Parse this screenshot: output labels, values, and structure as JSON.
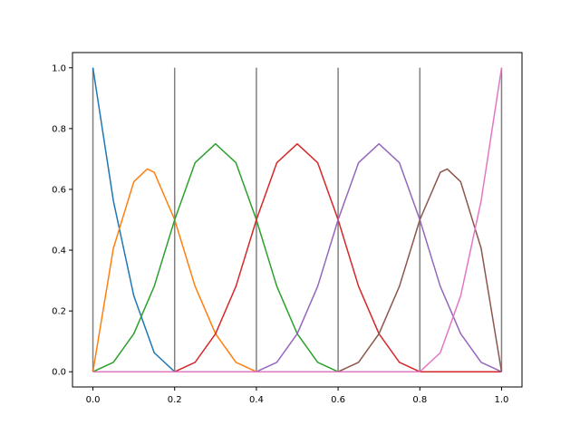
{
  "chart_data": {
    "type": "line",
    "title": "",
    "xlabel": "",
    "ylabel": "",
    "xlim": [
      -0.05,
      1.05
    ],
    "ylim": [
      -0.05,
      1.05
    ],
    "x_ticks": [
      0.0,
      0.2,
      0.4,
      0.6,
      0.8,
      1.0
    ],
    "x_tick_labels": [
      "0.0",
      "0.2",
      "0.4",
      "0.6",
      "0.8",
      "1.0"
    ],
    "y_ticks": [
      0.0,
      0.2,
      0.4,
      0.6,
      0.8,
      1.0
    ],
    "y_tick_labels": [
      "0.0",
      "0.2",
      "0.4",
      "0.6",
      "0.8",
      "1.0"
    ],
    "grid": false,
    "legend": "none",
    "knot_lines": {
      "x": [
        0.0,
        0.2,
        0.4,
        0.6,
        0.8,
        1.0
      ],
      "y_range": [
        0,
        1
      ],
      "color": "#808080"
    },
    "series": [
      {
        "color": "#1f77b4",
        "x": [
          0.0,
          0.05,
          0.1,
          0.15,
          0.2,
          1.0
        ],
        "y": [
          1.0,
          0.5625,
          0.25,
          0.0625,
          0.0,
          0.0
        ]
      },
      {
        "color": "#ff7f0e",
        "x": [
          0.0,
          0.05,
          0.1,
          0.133,
          0.15,
          0.2,
          0.25,
          0.3,
          0.35,
          0.4,
          1.0
        ],
        "y": [
          0.0,
          0.406,
          0.625,
          0.667,
          0.656,
          0.5,
          0.281,
          0.125,
          0.031,
          0.0,
          0.0
        ]
      },
      {
        "color": "#2ca02c",
        "x": [
          0.0,
          0.05,
          0.1,
          0.15,
          0.2,
          0.25,
          0.3,
          0.35,
          0.4,
          0.45,
          0.5,
          0.55,
          0.6,
          1.0
        ],
        "y": [
          0.0,
          0.031,
          0.125,
          0.281,
          0.5,
          0.6875,
          0.75,
          0.6875,
          0.5,
          0.281,
          0.125,
          0.031,
          0.0,
          0.0
        ]
      },
      {
        "color": "#d62728",
        "x": [
          0.0,
          0.2,
          0.25,
          0.3,
          0.35,
          0.4,
          0.45,
          0.5,
          0.55,
          0.6,
          0.65,
          0.7,
          0.75,
          0.8,
          1.0
        ],
        "y": [
          0.0,
          0.0,
          0.031,
          0.125,
          0.281,
          0.5,
          0.6875,
          0.75,
          0.6875,
          0.5,
          0.281,
          0.125,
          0.031,
          0.0,
          0.0
        ]
      },
      {
        "color": "#9467bd",
        "x": [
          0.0,
          0.4,
          0.45,
          0.5,
          0.55,
          0.6,
          0.65,
          0.7,
          0.75,
          0.8,
          0.85,
          0.9,
          0.95,
          1.0
        ],
        "y": [
          0.0,
          0.0,
          0.031,
          0.125,
          0.281,
          0.5,
          0.6875,
          0.75,
          0.6875,
          0.5,
          0.281,
          0.125,
          0.031,
          0.0
        ]
      },
      {
        "color": "#8c564b",
        "x": [
          0.0,
          0.6,
          0.65,
          0.7,
          0.75,
          0.8,
          0.85,
          0.867,
          0.9,
          0.95,
          1.0
        ],
        "y": [
          0.0,
          0.0,
          0.031,
          0.125,
          0.281,
          0.5,
          0.656,
          0.667,
          0.625,
          0.406,
          0.0
        ]
      },
      {
        "color": "#e377c2",
        "x": [
          0.0,
          0.8,
          0.85,
          0.9,
          0.95,
          1.0
        ],
        "y": [
          0.0,
          0.0,
          0.0625,
          0.25,
          0.5625,
          1.0
        ]
      }
    ]
  }
}
